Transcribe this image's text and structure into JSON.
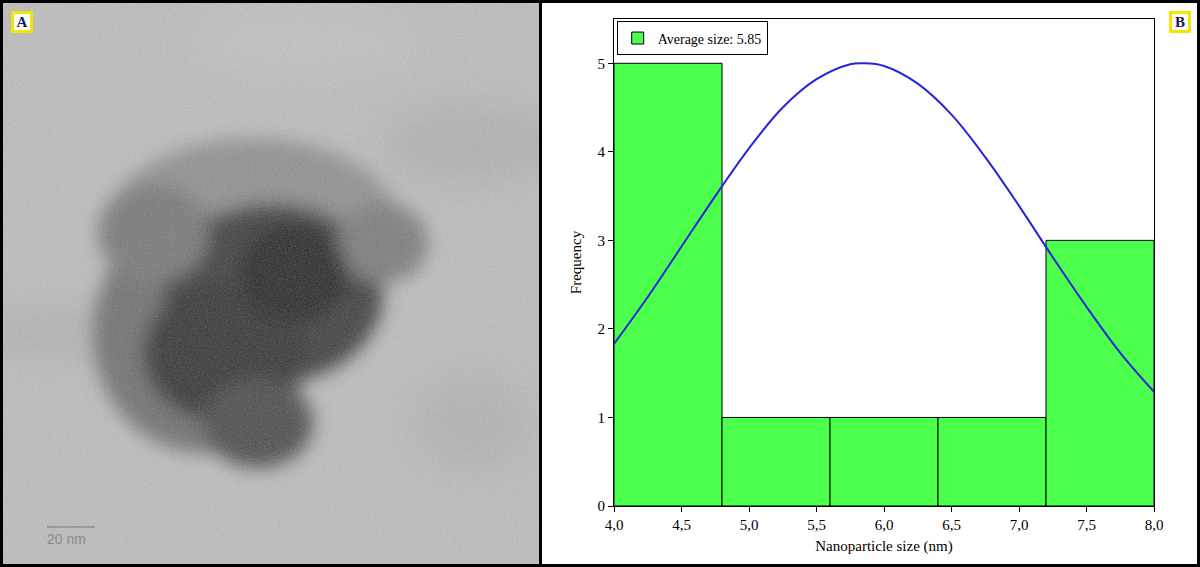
{
  "image_panel": {
    "label": "A",
    "scale_bar": "20 nm"
  },
  "chart_label": "B",
  "chart_data": {
    "type": "histogram",
    "x_label": "Nanoparticle size (nm)",
    "y_label": "Frequency",
    "series": [
      {
        "name": "Average size: 5.85",
        "type": "histogram",
        "color": "#4dff4d",
        "bins": [
          4.0,
          4.8,
          5.6,
          6.4,
          7.2,
          8.0
        ],
        "values": [
          5,
          1,
          1,
          1,
          3
        ]
      },
      {
        "type": "line",
        "color": "#2525d9",
        "x": [
          4.0,
          4.25,
          4.5,
          4.75,
          5.0,
          5.25,
          5.5,
          5.75,
          5.85,
          6.0,
          6.25,
          6.5,
          6.75,
          7.0,
          7.25,
          7.5,
          7.75,
          8.0
        ],
        "values": [
          1.83,
          2.36,
          2.93,
          3.5,
          4.04,
          4.5,
          4.82,
          4.99,
          5.0,
          4.97,
          4.77,
          4.42,
          3.94,
          3.39,
          2.81,
          2.25,
          1.73,
          1.29
        ]
      }
    ],
    "xlim": [
      4.0,
      8.0
    ],
    "xticks": [
      {
        "value": 4.0,
        "label": "4,0"
      },
      {
        "value": 4.5,
        "label": "4,5"
      },
      {
        "value": 5.0,
        "label": "5,0"
      },
      {
        "value": 5.5,
        "label": "5,5"
      },
      {
        "value": 6.0,
        "label": "6,0"
      },
      {
        "value": 6.5,
        "label": "6,5"
      },
      {
        "value": 7.0,
        "label": "7,0"
      },
      {
        "value": 7.5,
        "label": "7,5"
      },
      {
        "value": 8.0,
        "label": "8,0"
      }
    ],
    "ylim": [
      0,
      5.5
    ],
    "yticks": [
      0,
      1,
      2,
      3,
      4,
      5
    ],
    "grid": false,
    "legend": "upper left"
  }
}
